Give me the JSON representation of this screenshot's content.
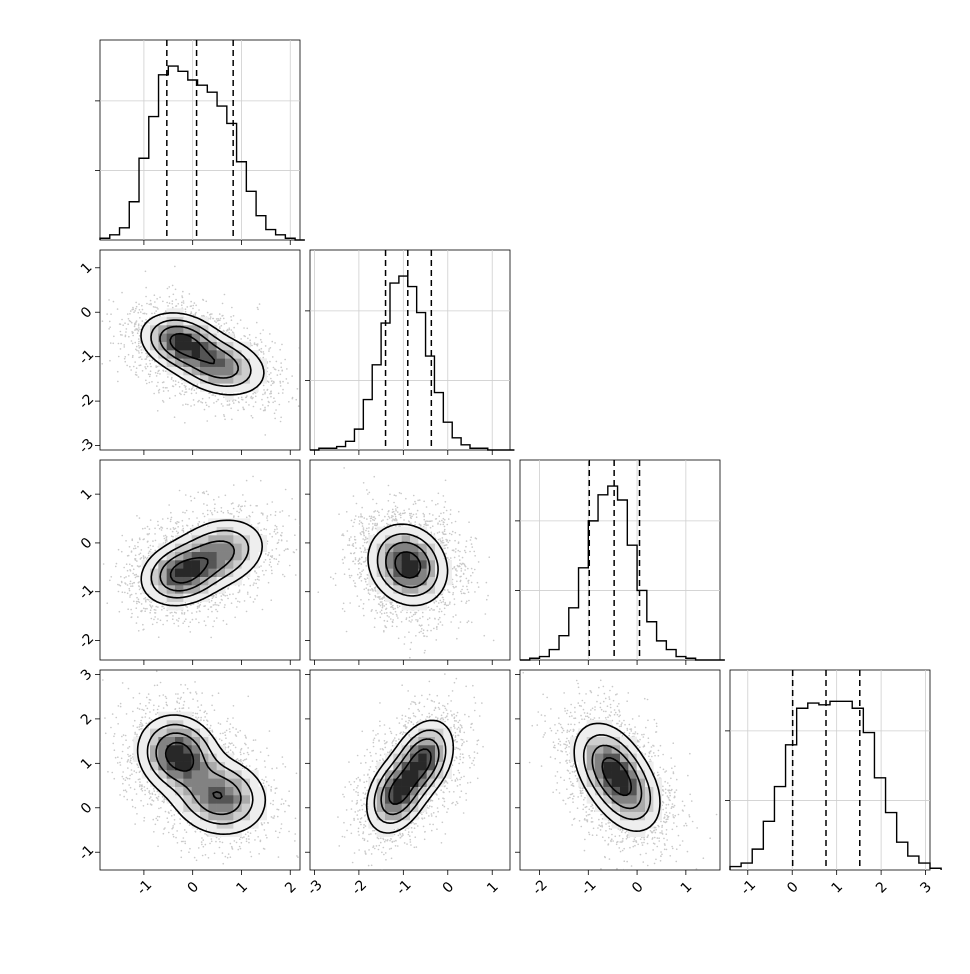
{
  "chart_data": {
    "type": "corner",
    "grid": true,
    "ticks": {
      "p0": [
        "-1",
        "0",
        "1",
        "2"
      ],
      "p1": [
        "-3",
        "-2",
        "-1",
        "0",
        "1"
      ],
      "p2": [
        "-2",
        "-1",
        "0",
        "1"
      ],
      "p3": [
        "-1",
        "0",
        "1",
        "2",
        "3"
      ]
    },
    "params": [
      {
        "range": [
          -1.9,
          2.2
        ],
        "tick_values": [
          -1,
          0,
          1,
          2
        ],
        "quantiles": [
          -0.53,
          0.08,
          0.83
        ],
        "hist_x0": -1.9,
        "hist_dx": 0.2,
        "hist": [
          0.01,
          0.03,
          0.07,
          0.22,
          0.47,
          0.71,
          0.95,
          1.0,
          0.97,
          0.92,
          0.89,
          0.85,
          0.77,
          0.67,
          0.45,
          0.28,
          0.14,
          0.06,
          0.03,
          0.01,
          0.0
        ],
        "hist_ymax": 1.15
      },
      {
        "range": [
          -3.1,
          1.4
        ],
        "tick_values": [
          -3,
          -2,
          -1,
          0,
          1
        ],
        "quantiles": [
          -1.4,
          -0.9,
          -0.37
        ],
        "hist_x0": -3.1,
        "hist_dx": 0.2,
        "hist": [
          0.0,
          0.01,
          0.01,
          0.02,
          0.05,
          0.12,
          0.29,
          0.49,
          0.73,
          0.96,
          1.0,
          0.94,
          0.79,
          0.54,
          0.33,
          0.16,
          0.07,
          0.03,
          0.01,
          0.01,
          0.0,
          0.0,
          0.0
        ],
        "hist_ymax": 1.15
      },
      {
        "range": [
          -2.4,
          1.7
        ],
        "tick_values": [
          -2,
          -1,
          0,
          1
        ],
        "quantiles": [
          -0.98,
          -0.47,
          0.05
        ],
        "hist_x0": -2.4,
        "hist_dx": 0.2,
        "hist": [
          0.0,
          0.01,
          0.02,
          0.06,
          0.14,
          0.3,
          0.53,
          0.8,
          0.95,
          1.0,
          0.92,
          0.66,
          0.4,
          0.22,
          0.11,
          0.06,
          0.02,
          0.01,
          0.0,
          0.0,
          0.0
        ],
        "hist_ymax": 1.15
      },
      {
        "range": [
          -1.4,
          3.1
        ],
        "tick_values": [
          -1,
          0,
          1,
          2,
          3
        ],
        "quantiles": [
          0.01,
          0.76,
          1.52
        ],
        "hist_x0": -1.4,
        "hist_dx": 0.25,
        "hist": [
          0.02,
          0.04,
          0.12,
          0.28,
          0.48,
          0.72,
          0.93,
          0.96,
          0.95,
          0.97,
          0.97,
          0.93,
          0.79,
          0.53,
          0.33,
          0.16,
          0.08,
          0.04,
          0.01
        ],
        "hist_ymax": 1.15
      }
    ],
    "pairs": [
      {
        "x": 0,
        "y": 1,
        "blobs": [
          {
            "mx": -0.25,
            "my": -0.65,
            "sx": 0.42,
            "sy": 0.33,
            "rho": -0.2,
            "w": 0.6
          },
          {
            "mx": 0.55,
            "my": -1.2,
            "sx": 0.5,
            "sy": 0.36,
            "rho": -0.25,
            "w": 0.5
          }
        ]
      },
      {
        "x": 0,
        "y": 2,
        "blobs": [
          {
            "mx": -0.25,
            "my": -0.65,
            "sx": 0.42,
            "sy": 0.33,
            "rho": 0.15,
            "w": 0.6
          },
          {
            "mx": 0.55,
            "my": -0.2,
            "sx": 0.5,
            "sy": 0.38,
            "rho": 0.2,
            "w": 0.45
          }
        ]
      },
      {
        "x": 1,
        "y": 2,
        "blobs": [
          {
            "mx": -0.9,
            "my": -0.45,
            "sx": 0.45,
            "sy": 0.42,
            "rho": -0.15,
            "w": 1.0
          }
        ]
      },
      {
        "x": 0,
        "y": 3,
        "blobs": [
          {
            "mx": -0.3,
            "my": 1.2,
            "sx": 0.42,
            "sy": 0.45,
            "rho": -0.1,
            "w": 0.6
          },
          {
            "mx": 0.55,
            "my": 0.25,
            "sx": 0.5,
            "sy": 0.45,
            "rho": -0.1,
            "w": 0.5
          }
        ]
      },
      {
        "x": 1,
        "y": 3,
        "blobs": [
          {
            "mx": -1.15,
            "my": 0.3,
            "sx": 0.35,
            "sy": 0.45,
            "rho": 0.3,
            "w": 0.55
          },
          {
            "mx": -0.55,
            "my": 1.1,
            "sx": 0.35,
            "sy": 0.45,
            "rho": 0.3,
            "w": 0.55
          }
        ]
      },
      {
        "x": 2,
        "y": 3,
        "blobs": [
          {
            "mx": -0.6,
            "my": 1.0,
            "sx": 0.38,
            "sy": 0.5,
            "rho": -0.3,
            "w": 0.55
          },
          {
            "mx": -0.2,
            "my": 0.35,
            "sx": 0.38,
            "sy": 0.5,
            "rho": -0.3,
            "w": 0.5
          }
        ]
      }
    ]
  }
}
